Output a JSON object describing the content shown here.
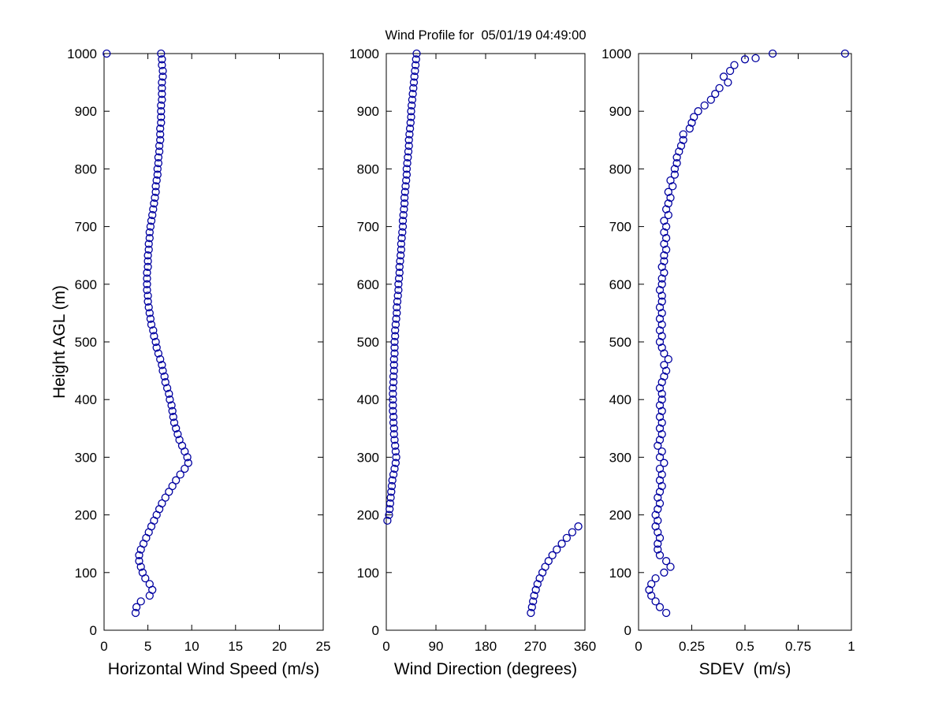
{
  "title": "Wind Profile for  05/01/19 04:49:00",
  "ylabel": "Height AGL (m)",
  "marker_color": "#0000A0",
  "axis_color": "#000000",
  "chart_data": [
    {
      "type": "scatter",
      "xlabel": "Horizontal Wind Speed (m/s)",
      "ylabel": "Height AGL (m)",
      "xlim": [
        0,
        25
      ],
      "ylim": [
        0,
        1000
      ],
      "xticks": [
        0,
        5,
        10,
        15,
        20,
        25
      ],
      "yticks": [
        0,
        100,
        200,
        300,
        400,
        500,
        600,
        700,
        800,
        900,
        1000
      ],
      "y": [
        30,
        40,
        50,
        60,
        70,
        80,
        90,
        100,
        110,
        120,
        130,
        140,
        150,
        160,
        170,
        180,
        190,
        200,
        210,
        220,
        230,
        240,
        250,
        260,
        270,
        280,
        290,
        300,
        310,
        320,
        330,
        340,
        350,
        360,
        370,
        380,
        390,
        400,
        410,
        420,
        430,
        440,
        450,
        460,
        470,
        480,
        490,
        500,
        510,
        520,
        530,
        540,
        550,
        560,
        570,
        580,
        590,
        600,
        610,
        620,
        630,
        640,
        650,
        660,
        670,
        680,
        690,
        700,
        710,
        720,
        730,
        740,
        750,
        760,
        770,
        780,
        790,
        800,
        810,
        820,
        830,
        840,
        850,
        860,
        870,
        880,
        890,
        900,
        910,
        920,
        930,
        940,
        950,
        960,
        970,
        980,
        990,
        1000
      ],
      "x": [
        3.6,
        3.7,
        4.2,
        5.2,
        5.5,
        5.2,
        4.7,
        4.4,
        4.2,
        4.0,
        4.0,
        4.2,
        4.5,
        4.8,
        5.1,
        5.4,
        5.7,
        6.0,
        6.3,
        6.6,
        7.0,
        7.4,
        7.8,
        8.2,
        8.7,
        9.2,
        9.6,
        9.5,
        9.2,
        8.9,
        8.6,
        8.4,
        8.2,
        8.0,
        7.9,
        7.8,
        7.7,
        7.5,
        7.4,
        7.2,
        7.0,
        6.9,
        6.7,
        6.6,
        6.4,
        6.2,
        6.0,
        5.9,
        5.7,
        5.6,
        5.4,
        5.3,
        5.2,
        5.1,
        5.0,
        5.0,
        4.9,
        4.9,
        4.9,
        4.9,
        5.0,
        5.0,
        5.0,
        5.1,
        5.1,
        5.2,
        5.2,
        5.3,
        5.4,
        5.5,
        5.6,
        5.7,
        5.8,
        5.9,
        5.9,
        6.0,
        6.1,
        6.1,
        6.2,
        6.2,
        6.3,
        6.3,
        6.4,
        6.4,
        6.4,
        6.5,
        6.5,
        6.5,
        6.5,
        6.6,
        6.6,
        6.6,
        6.6,
        6.7,
        6.7,
        6.6,
        6.6,
        6.5
      ],
      "extra_points": [
        [
          0.3,
          1000
        ]
      ]
    },
    {
      "type": "scatter",
      "xlabel": "Wind Direction (degrees)",
      "ylabel": "Height AGL (m)",
      "xlim": [
        0,
        360
      ],
      "ylim": [
        0,
        1000
      ],
      "xticks": [
        0,
        90,
        180,
        270,
        360
      ],
      "yticks": [
        0,
        100,
        200,
        300,
        400,
        500,
        600,
        700,
        800,
        900,
        1000
      ],
      "y": [
        30,
        40,
        50,
        60,
        70,
        80,
        90,
        100,
        110,
        120,
        130,
        140,
        150,
        160,
        170,
        180,
        190,
        200,
        210,
        220,
        230,
        240,
        250,
        260,
        270,
        280,
        290,
        300,
        310,
        320,
        330,
        340,
        350,
        360,
        370,
        380,
        390,
        400,
        410,
        420,
        430,
        440,
        450,
        460,
        470,
        480,
        490,
        500,
        510,
        520,
        530,
        540,
        550,
        560,
        570,
        580,
        590,
        600,
        610,
        620,
        630,
        640,
        650,
        660,
        670,
        680,
        690,
        700,
        710,
        720,
        730,
        740,
        750,
        760,
        770,
        780,
        790,
        800,
        810,
        820,
        830,
        840,
        850,
        860,
        870,
        880,
        890,
        900,
        910,
        920,
        930,
        940,
        950,
        960,
        970,
        980,
        990,
        1000
      ],
      "x": [
        262,
        264,
        266,
        268,
        271,
        274,
        278,
        283,
        288,
        294,
        301,
        309,
        318,
        327,
        337,
        348,
        2,
        5,
        6,
        7,
        8,
        9,
        10,
        11,
        13,
        15,
        17,
        18,
        17,
        16,
        15,
        14,
        14,
        13,
        13,
        12,
        12,
        12,
        12,
        12,
        13,
        13,
        14,
        14,
        14,
        15,
        15,
        15,
        16,
        16,
        17,
        18,
        19,
        19,
        20,
        21,
        22,
        22,
        23,
        24,
        24,
        25,
        26,
        27,
        27,
        28,
        29,
        30,
        30,
        31,
        32,
        33,
        33,
        34,
        35,
        36,
        37,
        37,
        38,
        39,
        40,
        41,
        41,
        42,
        43,
        44,
        45,
        45,
        46,
        47,
        48,
        49,
        50,
        51,
        52,
        53,
        54,
        55
      ],
      "extra_points": []
    },
    {
      "type": "scatter",
      "xlabel": "SDEV  (m/s)",
      "ylabel": "Height AGL (m)",
      "xlim": [
        0,
        1
      ],
      "ylim": [
        0,
        1000
      ],
      "xticks": [
        0,
        0.25,
        0.5,
        0.75,
        1
      ],
      "yticks": [
        0,
        100,
        200,
        300,
        400,
        500,
        600,
        700,
        800,
        900,
        1000
      ],
      "y": [
        30,
        40,
        50,
        60,
        70,
        80,
        90,
        100,
        110,
        120,
        130,
        140,
        150,
        160,
        170,
        180,
        190,
        200,
        210,
        220,
        230,
        240,
        250,
        260,
        270,
        280,
        290,
        300,
        310,
        320,
        330,
        340,
        350,
        360,
        370,
        380,
        390,
        400,
        410,
        420,
        430,
        440,
        450,
        460,
        470,
        480,
        490,
        500,
        510,
        520,
        530,
        540,
        550,
        560,
        570,
        580,
        590,
        600,
        610,
        620,
        630,
        640,
        650,
        660,
        670,
        680,
        690,
        700,
        710,
        720,
        730,
        740,
        750,
        760,
        770,
        780,
        790,
        800,
        810,
        820,
        830,
        840,
        850,
        860,
        870,
        880,
        890,
        900,
        910,
        920,
        930,
        940,
        950,
        960,
        970,
        980,
        990,
        1000
      ],
      "x": [
        0.13,
        0.1,
        0.08,
        0.06,
        0.05,
        0.06,
        0.08,
        0.12,
        0.15,
        0.13,
        0.1,
        0.09,
        0.09,
        0.1,
        0.09,
        0.08,
        0.09,
        0.08,
        0.09,
        0.1,
        0.09,
        0.1,
        0.11,
        0.1,
        0.11,
        0.1,
        0.12,
        0.1,
        0.11,
        0.09,
        0.1,
        0.11,
        0.1,
        0.11,
        0.1,
        0.11,
        0.1,
        0.11,
        0.11,
        0.1,
        0.11,
        0.12,
        0.13,
        0.12,
        0.14,
        0.12,
        0.11,
        0.1,
        0.11,
        0.1,
        0.11,
        0.1,
        0.11,
        0.1,
        0.11,
        0.11,
        0.1,
        0.11,
        0.11,
        0.12,
        0.11,
        0.12,
        0.12,
        0.13,
        0.12,
        0.13,
        0.12,
        0.13,
        0.12,
        0.14,
        0.13,
        0.14,
        0.15,
        0.14,
        0.16,
        0.15,
        0.17,
        0.17,
        0.18,
        0.18,
        0.19,
        0.2,
        0.21,
        0.21,
        0.24,
        0.25,
        0.26,
        0.28,
        0.31,
        0.34,
        0.36,
        0.38,
        0.42,
        0.4,
        0.43,
        0.45,
        0.5,
        0.63
      ],
      "extra_points": [
        [
          0.55,
          992
        ],
        [
          0.97,
          1000
        ]
      ]
    }
  ]
}
